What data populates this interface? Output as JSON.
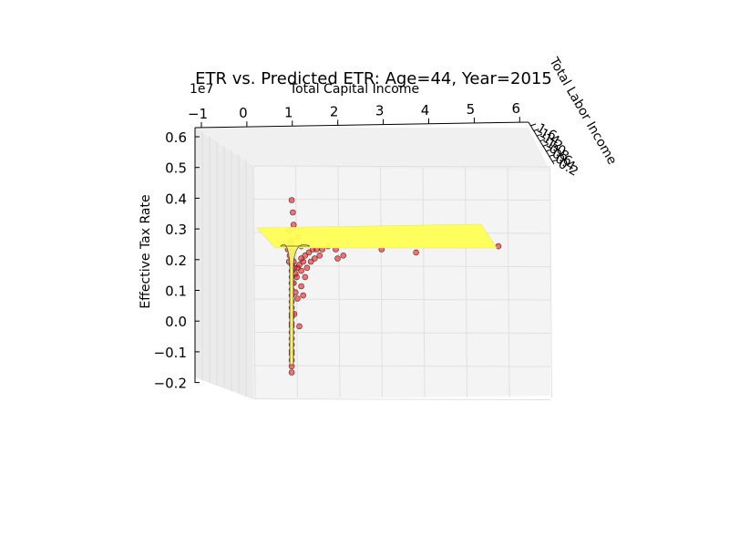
{
  "chart_data": {
    "type": "scatter",
    "projection": "3d",
    "title": "ETR vs. Predicted ETR: Age=44, Year=2015",
    "xlabel": "Total Capital Income",
    "ylabel": "Total Labor Income",
    "zlabel": "Effective Tax Rate",
    "x_offset_label": "1e7",
    "x_ticks": [
      "−1",
      "0",
      "1",
      "2",
      "3",
      "4",
      "5",
      "6"
    ],
    "y_ticks": [
      "1.6",
      "1.4",
      "1.2",
      "1.0",
      "0.8",
      "0.6",
      "0.4",
      "0.2"
    ],
    "y_tick_label_text": [
      "1.6",
      "1.4",
      "1.2",
      "1.0",
      "0.8",
      "0.6",
      "0.4",
      "0.2"
    ],
    "z_ticks": [
      "0.6",
      "0.5",
      "0.4",
      "0.3",
      "0.2",
      "0.1",
      "0.0",
      "−0.1",
      "−0.2"
    ],
    "xlim": [
      -1,
      6
    ],
    "zlim": [
      -0.2,
      0.6
    ],
    "grid": true,
    "series": [
      {
        "kind": "scatter",
        "color": "#ff0000",
        "edgecolor": "#000000",
        "points": [
          {
            "x": 0.05,
            "z": -0.16
          },
          {
            "x": 0.05,
            "z": -0.14
          },
          {
            "x": 0.05,
            "z": -0.12
          },
          {
            "x": 0.05,
            "z": -0.1
          },
          {
            "x": 0.05,
            "z": -0.09
          },
          {
            "x": 0.05,
            "z": -0.07
          },
          {
            "x": 0.05,
            "z": -0.05
          },
          {
            "x": 0.05,
            "z": -0.03
          },
          {
            "x": 0.05,
            "z": -0.01
          },
          {
            "x": 0.05,
            "z": 0.0
          },
          {
            "x": 0.05,
            "z": 0.02
          },
          {
            "x": 0.05,
            "z": 0.03
          },
          {
            "x": 0.05,
            "z": 0.05
          },
          {
            "x": 0.05,
            "z": 0.07
          },
          {
            "x": 0.05,
            "z": 0.09
          },
          {
            "x": 0.05,
            "z": 0.11
          },
          {
            "x": 0.05,
            "z": 0.13
          },
          {
            "x": 0.05,
            "z": 0.15
          },
          {
            "x": 0.05,
            "z": 0.17
          },
          {
            "x": 0.05,
            "z": 0.19
          },
          {
            "x": 0.05,
            "z": 0.21
          },
          {
            "x": 0.05,
            "z": 0.23
          },
          {
            "x": 0.05,
            "z": 0.25
          },
          {
            "x": 0.05,
            "z": 0.27
          },
          {
            "x": 0.02,
            "z": 0.26
          },
          {
            "x": 0.08,
            "z": 0.24
          },
          {
            "x": 0.0,
            "z": 0.22
          },
          {
            "x": 0.1,
            "z": 0.2
          },
          {
            "x": 0.12,
            "z": 0.18
          },
          {
            "x": -0.02,
            "z": 0.2
          },
          {
            "x": 0.15,
            "z": 0.16
          },
          {
            "x": 0.2,
            "z": 0.18
          },
          {
            "x": 0.25,
            "z": 0.19
          },
          {
            "x": 0.3,
            "z": 0.21
          },
          {
            "x": 0.35,
            "z": 0.2
          },
          {
            "x": 0.4,
            "z": 0.22
          },
          {
            "x": 0.5,
            "z": 0.23
          },
          {
            "x": 0.6,
            "z": 0.24
          },
          {
            "x": 0.7,
            "z": 0.24
          },
          {
            "x": 0.85,
            "z": 0.24
          },
          {
            "x": 1.0,
            "z": 0.25
          },
          {
            "x": 1.2,
            "z": 0.24
          },
          {
            "x": 0.15,
            "z": 0.1
          },
          {
            "x": 0.2,
            "z": 0.08
          },
          {
            "x": 0.3,
            "z": 0.12
          },
          {
            "x": 0.35,
            "z": 0.09
          },
          {
            "x": 0.4,
            "z": 0.15
          },
          {
            "x": 0.45,
            "z": 0.18
          },
          {
            "x": 0.12,
            "z": 0.03
          },
          {
            "x": 0.25,
            "z": -0.01
          },
          {
            "x": 0.1,
            "z": 0.13
          },
          {
            "x": 0.18,
            "z": 0.15
          },
          {
            "x": 0.3,
            "z": 0.17
          },
          {
            "x": 0.55,
            "z": 0.2
          },
          {
            "x": 0.08,
            "z": 0.36
          },
          {
            "x": 0.05,
            "z": 0.4
          },
          {
            "x": 0.1,
            "z": 0.32
          },
          {
            "x": 0.0,
            "z": 0.3
          },
          {
            "x": -0.05,
            "z": 0.24
          },
          {
            "x": 0.22,
            "z": 0.28
          },
          {
            "x": 0.3,
            "z": 0.25
          },
          {
            "x": 0.65,
            "z": 0.21
          },
          {
            "x": 0.78,
            "z": 0.22
          },
          {
            "x": 1.25,
            "z": 0.21
          },
          {
            "x": 1.4,
            "z": 0.22
          },
          {
            "x": 2.4,
            "z": 0.24
          },
          {
            "x": 3.3,
            "z": 0.23
          },
          {
            "x": 5.45,
            "z": 0.25
          }
        ]
      },
      {
        "kind": "surface",
        "color": "#ffff55",
        "description_values": "predicted ETR surface, flat near 0.25 across x from 0 to 5.5 with a sharp drop near x=0"
      }
    ]
  }
}
